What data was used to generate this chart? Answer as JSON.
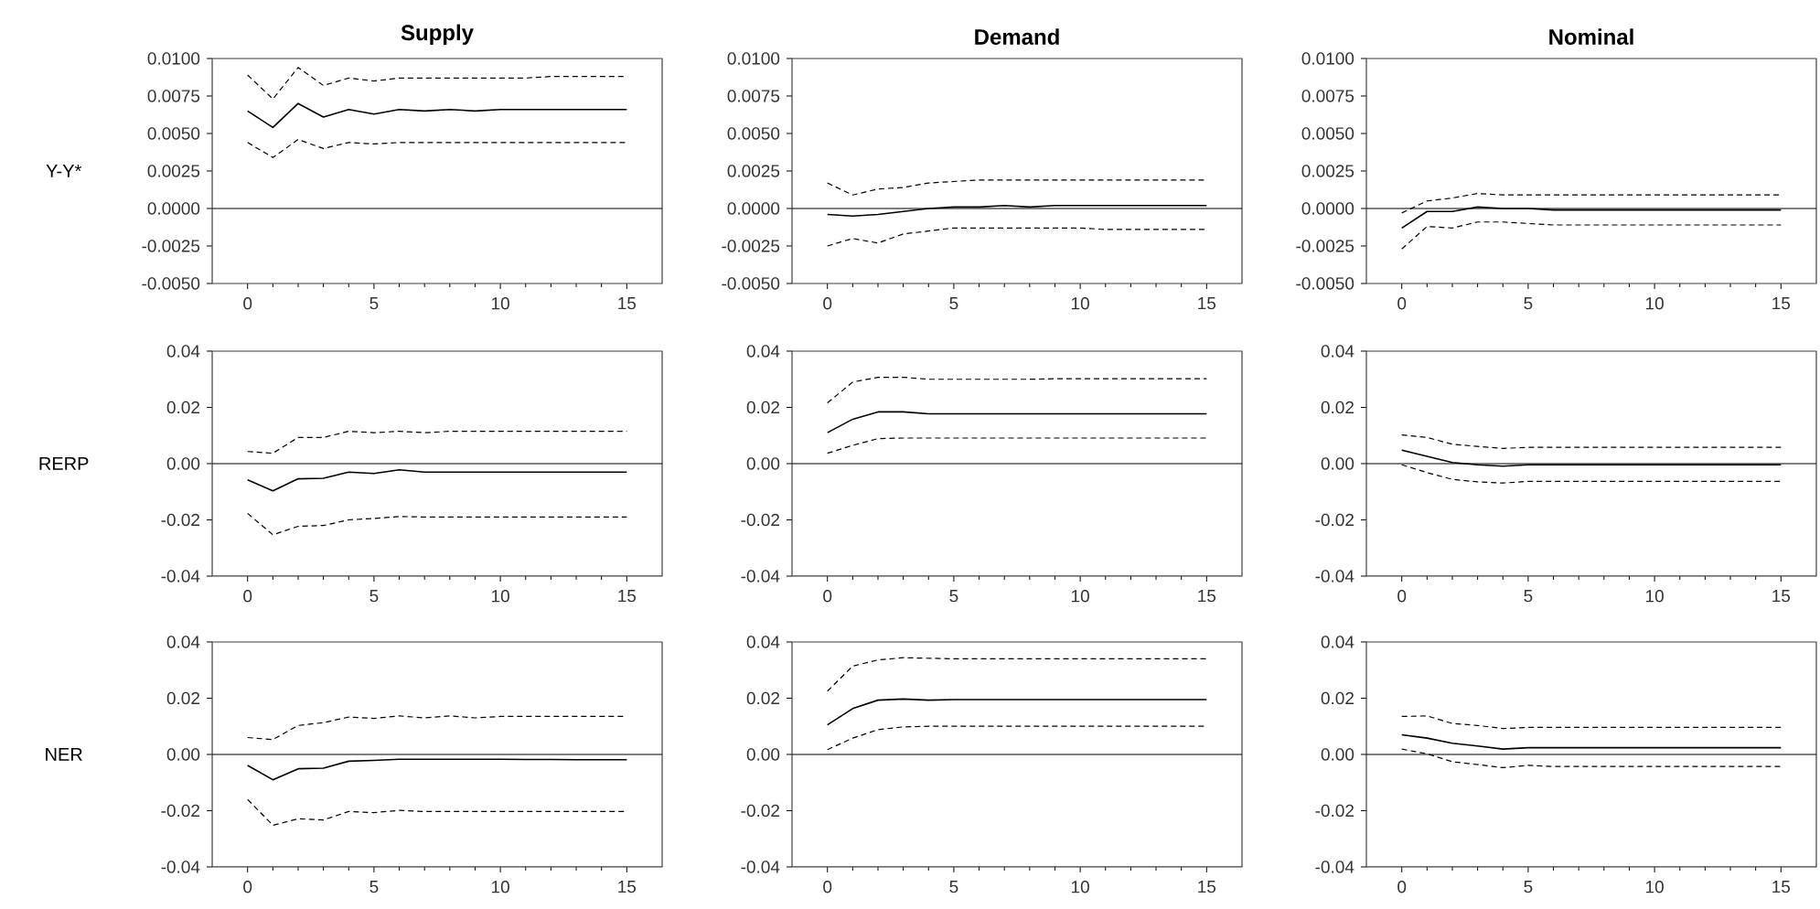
{
  "chart_data": [
    {
      "type": "line",
      "title": "Supply",
      "ylabel": "Y-Y*",
      "x": [
        0,
        1,
        2,
        3,
        4,
        5,
        6,
        7,
        8,
        9,
        10,
        11,
        12,
        13,
        14,
        15
      ],
      "xlim": [
        -1.4,
        16.4
      ],
      "xticks": [
        0,
        5,
        10,
        15
      ],
      "ylim": [
        -0.005,
        0.01
      ],
      "yticks": [
        {
          "value": -0.005,
          "label": "-0.0050"
        },
        {
          "value": -0.0025,
          "label": "-0.0025"
        },
        {
          "value": 0,
          "label": "0.0000"
        },
        {
          "value": 0.0025,
          "label": "0.0025"
        },
        {
          "value": 0.005,
          "label": "0.0050"
        },
        {
          "value": 0.0075,
          "label": "0.0075"
        },
        {
          "value": 0.01,
          "label": "0.0100"
        }
      ],
      "ref_lines": [
        {
          "axis": "y",
          "value": 0
        }
      ],
      "series": [
        {
          "color": "#000000",
          "line_style": "solid",
          "values": [
            0.0065,
            0.0054,
            0.007,
            0.0061,
            0.0066,
            0.0063,
            0.0066,
            0.0065,
            0.0066,
            0.0065,
            0.0066,
            0.0066,
            0.0066,
            0.0066,
            0.0066,
            0.0066
          ]
        },
        {
          "color": "#000000",
          "line_style": "dashed",
          "values": [
            0.0089,
            0.0073,
            0.0094,
            0.0082,
            0.0087,
            0.0085,
            0.0087,
            0.0087,
            0.0087,
            0.0087,
            0.0087,
            0.0087,
            0.0088,
            0.0088,
            0.0088,
            0.0088
          ]
        },
        {
          "color": "#000000",
          "line_style": "dashed",
          "values": [
            0.0044,
            0.0034,
            0.0046,
            0.004,
            0.0044,
            0.0043,
            0.0044,
            0.0044,
            0.0044,
            0.0044,
            0.0044,
            0.0044,
            0.0044,
            0.0044,
            0.0044,
            0.0044
          ]
        }
      ]
    },
    {
      "type": "line",
      "title": "Demand",
      "x": [
        0,
        1,
        2,
        3,
        4,
        5,
        6,
        7,
        8,
        9,
        10,
        11,
        12,
        13,
        14,
        15
      ],
      "xlim": [
        -1.4,
        16.4
      ],
      "xticks": [
        0,
        5,
        10,
        15
      ],
      "ylim": [
        -0.005,
        0.01
      ],
      "yticks": [
        {
          "value": -0.005,
          "label": "-0.0050"
        },
        {
          "value": -0.0025,
          "label": "-0.0025"
        },
        {
          "value": 0,
          "label": "0.0000"
        },
        {
          "value": 0.0025,
          "label": "0.0025"
        },
        {
          "value": 0.005,
          "label": "0.0050"
        },
        {
          "value": 0.0075,
          "label": "0.0075"
        },
        {
          "value": 0.01,
          "label": "0.0100"
        }
      ],
      "ref_lines": [
        {
          "axis": "y",
          "value": 0
        }
      ],
      "series": [
        {
          "color": "#000000",
          "line_style": "solid",
          "values": [
            -0.0004,
            -0.0005,
            -0.0004,
            -0.0002,
            0.0,
            0.0001,
            0.0001,
            0.0002,
            0.0001,
            0.0002,
            0.0002,
            0.0002,
            0.0002,
            0.0002,
            0.0002,
            0.0002
          ]
        },
        {
          "color": "#000000",
          "line_style": "dashed",
          "values": [
            0.0017,
            0.0009,
            0.0013,
            0.0014,
            0.0017,
            0.0018,
            0.0019,
            0.0019,
            0.0019,
            0.0019,
            0.0019,
            0.0019,
            0.0019,
            0.0019,
            0.0019,
            0.0019
          ]
        },
        {
          "color": "#000000",
          "line_style": "dashed",
          "values": [
            -0.0025,
            -0.002,
            -0.0023,
            -0.0017,
            -0.0015,
            -0.0013,
            -0.0013,
            -0.0013,
            -0.0013,
            -0.0013,
            -0.0013,
            -0.0014,
            -0.0014,
            -0.0014,
            -0.0014,
            -0.0014
          ]
        }
      ]
    },
    {
      "type": "line",
      "title": "Nominal",
      "x": [
        0,
        1,
        2,
        3,
        4,
        5,
        6,
        7,
        8,
        9,
        10,
        11,
        12,
        13,
        14,
        15
      ],
      "xlim": [
        -1.4,
        16.4
      ],
      "xticks": [
        0,
        5,
        10,
        15
      ],
      "ylim": [
        -0.005,
        0.01
      ],
      "yticks": [
        {
          "value": -0.005,
          "label": "-0.0050"
        },
        {
          "value": -0.0025,
          "label": "-0.0025"
        },
        {
          "value": 0,
          "label": "0.0000"
        },
        {
          "value": 0.0025,
          "label": "0.0025"
        },
        {
          "value": 0.005,
          "label": "0.0050"
        },
        {
          "value": 0.0075,
          "label": "0.0075"
        },
        {
          "value": 0.01,
          "label": "0.0100"
        }
      ],
      "ref_lines": [
        {
          "axis": "y",
          "value": 0
        }
      ],
      "series": [
        {
          "color": "#000000",
          "line_style": "solid",
          "values": [
            -0.0013,
            -0.0002,
            -0.0002,
            0.0001,
            0.0,
            0.0,
            -0.0001,
            -0.0001,
            -0.0001,
            -0.0001,
            -0.0001,
            -0.0001,
            -0.0001,
            -0.0001,
            -0.0001,
            -0.0001
          ]
        },
        {
          "color": "#000000",
          "line_style": "dashed",
          "values": [
            -0.0003,
            0.0005,
            0.0007,
            0.001,
            0.0009,
            0.0009,
            0.0009,
            0.0009,
            0.0009,
            0.0009,
            0.0009,
            0.0009,
            0.0009,
            0.0009,
            0.0009,
            0.0009
          ]
        },
        {
          "color": "#000000",
          "line_style": "dashed",
          "values": [
            -0.0027,
            -0.0012,
            -0.0013,
            -0.0009,
            -0.0009,
            -0.001,
            -0.0011,
            -0.0011,
            -0.0011,
            -0.0011,
            -0.0011,
            -0.0011,
            -0.0011,
            -0.0011,
            -0.0011,
            -0.0011
          ]
        }
      ]
    },
    {
      "type": "line",
      "ylabel": "RERP",
      "x": [
        0,
        1,
        2,
        3,
        4,
        5,
        6,
        7,
        8,
        9,
        10,
        11,
        12,
        13,
        14,
        15
      ],
      "xlim": [
        -1.4,
        16.4
      ],
      "xticks": [
        0,
        5,
        10,
        15
      ],
      "ylim": [
        -0.04,
        0.04
      ],
      "yticks": [
        -0.04,
        -0.02,
        {
          "value": 0,
          "label": "0.00"
        },
        0.02,
        0.04
      ],
      "ref_lines": [
        {
          "axis": "y",
          "value": 0
        }
      ],
      "series": [
        {
          "color": "#000000",
          "line_style": "solid",
          "values": [
            -0.0058,
            -0.0097,
            -0.0054,
            -0.0052,
            -0.003,
            -0.0035,
            -0.0022,
            -0.003,
            -0.003,
            -0.003,
            -0.003,
            -0.003,
            -0.003,
            -0.003,
            -0.003,
            -0.003
          ]
        },
        {
          "color": "#000000",
          "line_style": "dashed",
          "values": [
            0.0043,
            0.0037,
            0.0093,
            0.0093,
            0.0115,
            0.011,
            0.0115,
            0.011,
            0.0115,
            0.0115,
            0.0115,
            0.0115,
            0.0115,
            0.0115,
            0.0115,
            0.0115
          ]
        },
        {
          "color": "#000000",
          "line_style": "dashed",
          "values": [
            -0.0177,
            -0.0253,
            -0.0223,
            -0.022,
            -0.02,
            -0.0195,
            -0.0188,
            -0.019,
            -0.019,
            -0.019,
            -0.019,
            -0.019,
            -0.019,
            -0.019,
            -0.019,
            -0.019
          ]
        }
      ]
    },
    {
      "type": "line",
      "x": [
        0,
        1,
        2,
        3,
        4,
        5,
        6,
        7,
        8,
        9,
        10,
        11,
        12,
        13,
        14,
        15
      ],
      "xlim": [
        -1.4,
        16.4
      ],
      "xticks": [
        0,
        5,
        10,
        15
      ],
      "ylim": [
        -0.04,
        0.04
      ],
      "yticks": [
        -0.04,
        -0.02,
        {
          "value": 0,
          "label": "0.00"
        },
        0.02,
        0.04
      ],
      "ref_lines": [
        {
          "axis": "y",
          "value": 0
        }
      ],
      "series": [
        {
          "color": "#000000",
          "line_style": "solid",
          "values": [
            0.011,
            0.0158,
            0.0184,
            0.0184,
            0.0177,
            0.0177,
            0.0177,
            0.0177,
            0.0177,
            0.0177,
            0.0177,
            0.0177,
            0.0177,
            0.0177,
            0.0177,
            0.0177
          ]
        },
        {
          "color": "#000000",
          "line_style": "dashed",
          "values": [
            0.0216,
            0.029,
            0.0307,
            0.0307,
            0.03,
            0.03,
            0.03,
            0.03,
            0.03,
            0.0302,
            0.0302,
            0.0302,
            0.0302,
            0.0302,
            0.0302,
            0.0302
          ]
        },
        {
          "color": "#000000",
          "line_style": "dashed",
          "values": [
            0.0037,
            0.0065,
            0.0089,
            0.0091,
            0.0091,
            0.0091,
            0.0091,
            0.0091,
            0.0091,
            0.0091,
            0.0091,
            0.0091,
            0.0091,
            0.0091,
            0.0091,
            0.0091
          ]
        }
      ]
    },
    {
      "type": "line",
      "x": [
        0,
        1,
        2,
        3,
        4,
        5,
        6,
        7,
        8,
        9,
        10,
        11,
        12,
        13,
        14,
        15
      ],
      "xlim": [
        -1.4,
        16.4
      ],
      "xticks": [
        0,
        5,
        10,
        15
      ],
      "ylim": [
        -0.04,
        0.04
      ],
      "yticks": [
        -0.04,
        -0.02,
        {
          "value": 0,
          "label": "0.00"
        },
        0.02,
        0.04
      ],
      "ref_lines": [
        {
          "axis": "y",
          "value": 0
        }
      ],
      "series": [
        {
          "color": "#000000",
          "line_style": "solid",
          "values": [
            0.0048,
            0.0026,
            0.0004,
            -0.0004,
            -0.0009,
            -0.0004,
            -0.0004,
            -0.0004,
            -0.0004,
            -0.0004,
            -0.0004,
            -0.0004,
            -0.0004,
            -0.0004,
            -0.0004,
            -0.0004
          ]
        },
        {
          "color": "#000000",
          "line_style": "dashed",
          "values": [
            0.0102,
            0.0093,
            0.0069,
            0.0061,
            0.0054,
            0.0058,
            0.0058,
            0.0058,
            0.0058,
            0.0058,
            0.0058,
            0.0058,
            0.0058,
            0.0058,
            0.0058,
            0.0058
          ]
        },
        {
          "color": "#000000",
          "line_style": "dashed",
          "values": [
            -0.0004,
            -0.0032,
            -0.0056,
            -0.0065,
            -0.0069,
            -0.0063,
            -0.0063,
            -0.0063,
            -0.0063,
            -0.0063,
            -0.0063,
            -0.0063,
            -0.0063,
            -0.0063,
            -0.0063,
            -0.0063
          ]
        }
      ]
    },
    {
      "type": "line",
      "ylabel": "NER",
      "x": [
        0,
        1,
        2,
        3,
        4,
        5,
        6,
        7,
        8,
        9,
        10,
        11,
        12,
        13,
        14,
        15
      ],
      "xlim": [
        -1.4,
        16.4
      ],
      "xticks": [
        0,
        5,
        10,
        15
      ],
      "ylim": [
        -0.04,
        0.04
      ],
      "yticks": [
        -0.04,
        -0.02,
        {
          "value": 0,
          "label": "0.00"
        },
        0.02,
        0.04
      ],
      "ref_lines": [
        {
          "axis": "y",
          "value": 0
        }
      ],
      "series": [
        {
          "color": "#000000",
          "line_style": "solid",
          "values": [
            -0.0039,
            -0.009,
            -0.0051,
            -0.0049,
            -0.0024,
            -0.0021,
            -0.0017,
            -0.0017,
            -0.0017,
            -0.0017,
            -0.0017,
            -0.0018,
            -0.0018,
            -0.0019,
            -0.0019,
            -0.0019
          ]
        },
        {
          "color": "#000000",
          "line_style": "dashed",
          "values": [
            0.006,
            0.0053,
            0.0103,
            0.0113,
            0.0133,
            0.0128,
            0.0137,
            0.013,
            0.0137,
            0.013,
            0.0135,
            0.0135,
            0.0135,
            0.0135,
            0.0135,
            0.0135
          ]
        },
        {
          "color": "#000000",
          "line_style": "dashed",
          "values": [
            -0.016,
            -0.0252,
            -0.0229,
            -0.0233,
            -0.0203,
            -0.0207,
            -0.0199,
            -0.0203,
            -0.0203,
            -0.0203,
            -0.0203,
            -0.0203,
            -0.0203,
            -0.0203,
            -0.0203,
            -0.0203
          ]
        }
      ]
    },
    {
      "type": "line",
      "x": [
        0,
        1,
        2,
        3,
        4,
        5,
        6,
        7,
        8,
        9,
        10,
        11,
        12,
        13,
        14,
        15
      ],
      "xlim": [
        -1.4,
        16.4
      ],
      "xticks": [
        0,
        5,
        10,
        15
      ],
      "ylim": [
        -0.04,
        0.04
      ],
      "yticks": [
        -0.04,
        -0.02,
        {
          "value": 0,
          "label": "0.00"
        },
        0.02,
        0.04
      ],
      "ref_lines": [
        {
          "axis": "y",
          "value": 0
        }
      ],
      "series": [
        {
          "color": "#000000",
          "line_style": "solid",
          "values": [
            0.0105,
            0.0163,
            0.0193,
            0.0197,
            0.0193,
            0.0195,
            0.0195,
            0.0195,
            0.0195,
            0.0195,
            0.0195,
            0.0195,
            0.0195,
            0.0195,
            0.0195,
            0.0195
          ]
        },
        {
          "color": "#000000",
          "line_style": "dashed",
          "values": [
            0.0225,
            0.0314,
            0.0336,
            0.0344,
            0.0342,
            0.034,
            0.034,
            0.034,
            0.034,
            0.034,
            0.034,
            0.034,
            0.034,
            0.034,
            0.034,
            0.034
          ]
        },
        {
          "color": "#000000",
          "line_style": "dashed",
          "values": [
            0.0017,
            0.0058,
            0.0088,
            0.0098,
            0.01,
            0.01,
            0.01,
            0.01,
            0.01,
            0.01,
            0.01,
            0.01,
            0.01,
            0.01,
            0.01,
            0.01
          ]
        }
      ]
    },
    {
      "type": "line",
      "x": [
        0,
        1,
        2,
        3,
        4,
        5,
        6,
        7,
        8,
        9,
        10,
        11,
        12,
        13,
        14,
        15
      ],
      "xlim": [
        -1.4,
        16.4
      ],
      "xticks": [
        0,
        5,
        10,
        15
      ],
      "ylim": [
        -0.04,
        0.04
      ],
      "yticks": [
        -0.04,
        -0.02,
        {
          "value": 0,
          "label": "0.00"
        },
        0.02,
        0.04
      ],
      "ref_lines": [
        {
          "axis": "y",
          "value": 0
        }
      ],
      "series": [
        {
          "color": "#000000",
          "line_style": "solid",
          "values": [
            0.007,
            0.0058,
            0.004,
            0.003,
            0.0019,
            0.0024,
            0.0024,
            0.0024,
            0.0024,
            0.0024,
            0.0024,
            0.0024,
            0.0024,
            0.0024,
            0.0024,
            0.0024
          ]
        },
        {
          "color": "#000000",
          "line_style": "dashed",
          "values": [
            0.0135,
            0.0137,
            0.011,
            0.0103,
            0.0092,
            0.0096,
            0.0096,
            0.0096,
            0.0096,
            0.0096,
            0.0096,
            0.0096,
            0.0096,
            0.0096,
            0.0096,
            0.0096
          ]
        },
        {
          "color": "#000000",
          "line_style": "dashed",
          "values": [
            0.0019,
            0.0002,
            -0.0026,
            -0.0036,
            -0.0047,
            -0.0039,
            -0.0043,
            -0.0043,
            -0.0043,
            -0.0043,
            -0.0043,
            -0.0043,
            -0.0043,
            -0.0043,
            -0.0043,
            -0.0043
          ]
        }
      ]
    }
  ]
}
